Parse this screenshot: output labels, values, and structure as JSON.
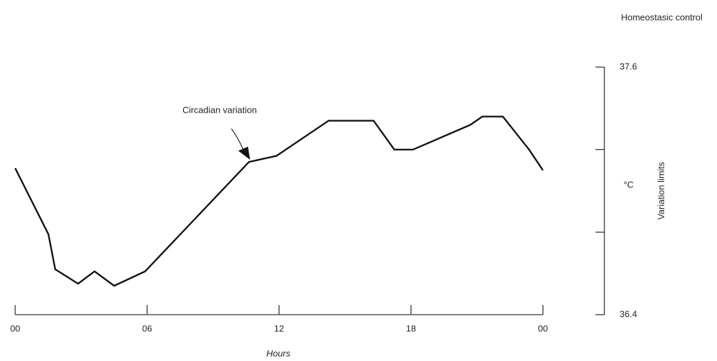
{
  "chart_data": {
    "type": "line",
    "title": "Homeostasic control",
    "annotation": "Circadian variation",
    "xlabel": "Hours",
    "yunit": "°C",
    "ylabel": "Variation limits",
    "x": [
      0,
      1.51,
      1.82,
      2.86,
      3.61,
      4.5,
      5.91,
      10.63,
      11.89,
      14.25,
      16.3,
      17.24,
      18.09,
      20.7,
      21.24,
      22.18,
      23.37,
      24
    ],
    "values": [
      37.11,
      36.79,
      36.62,
      36.55,
      36.61,
      36.54,
      36.61,
      37.14,
      37.17,
      37.34,
      37.34,
      37.2,
      37.2,
      37.32,
      37.36,
      37.36,
      37.2,
      37.1
    ],
    "color": "#111111",
    "xlim": [
      0,
      24
    ],
    "xticks": [
      {
        "value": 0,
        "label": "00"
      },
      {
        "value": 6,
        "label": "06"
      },
      12,
      18,
      {
        "value": 24,
        "label": "00"
      }
    ],
    "ylim": [
      36.4,
      37.6
    ],
    "yticks": [
      36.4,
      37.6
    ],
    "yminor_ticks": [
      36.8,
      37.2
    ]
  }
}
